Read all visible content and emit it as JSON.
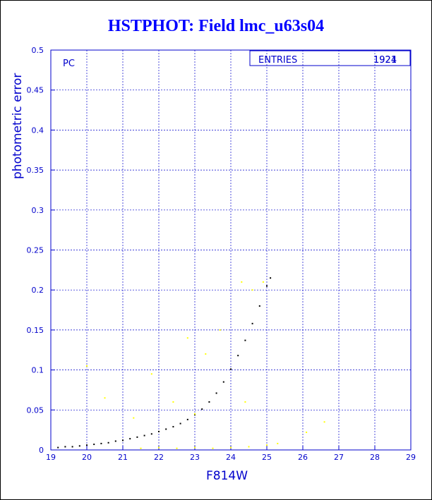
{
  "title": "HSTPHOT: Field lmc_u63s04",
  "chart_data": {
    "type": "scatter",
    "title": "HSTPHOT: Field lmc_u63s04",
    "xlabel": "F814W",
    "ylabel": "photometric error",
    "xlim": [
      19,
      29
    ],
    "ylim": [
      0,
      0.5
    ],
    "xticks": [
      "19",
      "20",
      "21",
      "22",
      "23",
      "24",
      "25",
      "26",
      "27",
      "28",
      "29"
    ],
    "yticks": [
      "0",
      "0.05",
      "0.1",
      "0.15",
      "0.2",
      "0.25",
      "0.3",
      "0.35",
      "0.4",
      "0.45",
      "0.5"
    ],
    "grid": true,
    "panel_label": "PC",
    "stats": {
      "label": "ENTRIES",
      "values": [
        "1924",
        "1921"
      ]
    },
    "colors": {
      "title": "#0000ff",
      "axes": "#0000cc",
      "grid": "#0000cc",
      "main": "#000000",
      "secondary": "#ffff00"
    },
    "series": [
      {
        "color": "#000000",
        "points": [
          [
            19.2,
            0.003
          ],
          [
            19.4,
            0.004
          ],
          [
            19.6,
            0.004
          ],
          [
            19.8,
            0.005
          ],
          [
            20.0,
            0.006
          ],
          [
            20.2,
            0.007
          ],
          [
            20.4,
            0.008
          ],
          [
            20.6,
            0.009
          ],
          [
            20.8,
            0.011
          ],
          [
            21.0,
            0.012
          ],
          [
            21.2,
            0.014
          ],
          [
            21.4,
            0.016
          ],
          [
            21.6,
            0.018
          ],
          [
            21.8,
            0.02
          ],
          [
            22.0,
            0.023
          ],
          [
            22.2,
            0.026
          ],
          [
            22.4,
            0.029
          ],
          [
            22.6,
            0.033
          ],
          [
            22.8,
            0.038
          ],
          [
            23.0,
            0.044
          ],
          [
            23.2,
            0.051
          ],
          [
            23.4,
            0.06
          ],
          [
            23.6,
            0.071
          ],
          [
            23.8,
            0.085
          ],
          [
            24.0,
            0.101
          ],
          [
            24.2,
            0.118
          ],
          [
            24.4,
            0.137
          ],
          [
            24.6,
            0.158
          ],
          [
            24.8,
            0.18
          ],
          [
            25.0,
            0.205
          ],
          [
            25.1,
            0.215
          ]
        ]
      },
      {
        "color": "#ffff00",
        "points": [
          [
            20.0,
            0.105
          ],
          [
            20.5,
            0.065
          ],
          [
            21.3,
            0.04
          ],
          [
            21.8,
            0.095
          ],
          [
            22.4,
            0.06
          ],
          [
            22.8,
            0.14
          ],
          [
            23.0,
            0.045
          ],
          [
            23.3,
            0.12
          ],
          [
            23.7,
            0.15
          ],
          [
            24.3,
            0.21
          ],
          [
            24.4,
            0.06
          ],
          [
            24.6,
            0.2
          ],
          [
            24.9,
            0.21
          ],
          [
            26.1,
            0.022
          ],
          [
            26.6,
            0.035
          ],
          [
            21.5,
            0.002
          ],
          [
            22.0,
            0.003
          ],
          [
            22.5,
            0.002
          ],
          [
            23.0,
            0.003
          ],
          [
            23.5,
            0.002
          ],
          [
            24.0,
            0.003
          ],
          [
            24.5,
            0.004
          ],
          [
            25.0,
            0.006
          ],
          [
            25.3,
            0.008
          ]
        ]
      }
    ]
  }
}
